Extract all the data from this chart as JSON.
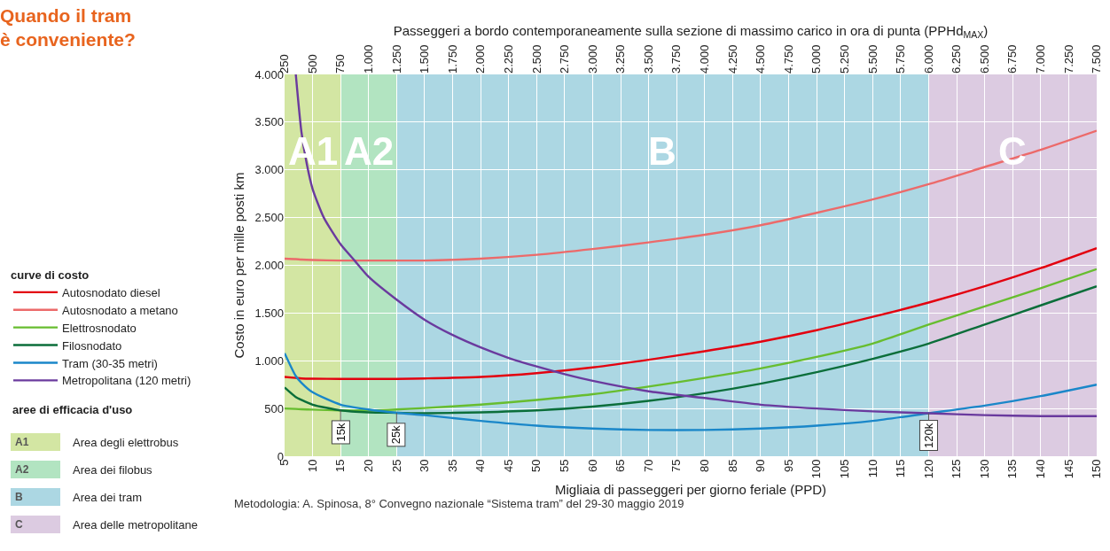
{
  "chart_data": {
    "type": "line",
    "title": "Quando il tram è conveniente?",
    "xlabel": "Migliaia di passeggeri per giorno feriale (PPD)",
    "ylabel": "Costo in euro per mille posti km",
    "x2label": "Passeggeri a bordo contemporaneamente sulla sezione di massimo carico in ora di punta (PPHd$_{MAX}$)",
    "legend_title": "curve di costo",
    "x": [
      5,
      7,
      8,
      10,
      15,
      20,
      25,
      30,
      40,
      50,
      60,
      70,
      80,
      90,
      100,
      110,
      120,
      130,
      140,
      150
    ],
    "series": [
      {
        "name": "Autosnodato diesel",
        "color": "#e3000f",
        "values": [
          830,
          820,
          815,
          812,
          810,
          810,
          810,
          815,
          830,
          870,
          930,
          1010,
          1100,
          1200,
          1320,
          1460,
          1610,
          1780,
          1970,
          2180
        ]
      },
      {
        "name": "Autosnodato a metano",
        "color": "#ec6a6a",
        "values": [
          2070,
          2065,
          2060,
          2055,
          2050,
          2050,
          2050,
          2050,
          2070,
          2110,
          2170,
          2240,
          2320,
          2420,
          2550,
          2690,
          2850,
          3030,
          3210,
          3410
        ]
      },
      {
        "name": "Elettrosnodato",
        "color": "#67bd2f",
        "values": [
          500,
          495,
          492,
          488,
          480,
          480,
          490,
          505,
          540,
          590,
          650,
          730,
          820,
          920,
          1040,
          1180,
          1380,
          1570,
          1760,
          1960
        ]
      },
      {
        "name": "Filosnodato",
        "color": "#0b6e3a",
        "values": [
          720,
          620,
          590,
          540,
          480,
          460,
          455,
          450,
          460,
          480,
          520,
          580,
          660,
          760,
          880,
          1020,
          1180,
          1380,
          1580,
          1780
        ]
      },
      {
        "name": "Tram (30-35 metri)",
        "color": "#1a87c9",
        "values": [
          1080,
          840,
          770,
          670,
          540,
          490,
          455,
          430,
          370,
          320,
          290,
          275,
          275,
          290,
          320,
          370,
          450,
          530,
          630,
          750
        ]
      },
      {
        "name": "Metropolitana (120 metri)",
        "color": "#6a3a9e",
        "x": [
          7,
          8,
          9,
          10,
          12,
          15,
          17.5,
          20,
          25,
          30,
          35,
          40,
          45,
          50,
          55,
          60,
          70,
          80,
          90,
          100,
          110,
          120,
          130,
          140,
          150
        ],
        "values": [
          4000,
          3400,
          3050,
          2800,
          2500,
          2220,
          2050,
          1880,
          1640,
          1430,
          1270,
          1140,
          1030,
          940,
          860,
          790,
          680,
          610,
          540,
          500,
          470,
          450,
          430,
          420,
          420
        ]
      }
    ],
    "xlim": [
      5,
      150
    ],
    "xticks": [
      5,
      10,
      15,
      20,
      25,
      30,
      35,
      40,
      45,
      50,
      55,
      60,
      65,
      70,
      75,
      80,
      85,
      90,
      95,
      100,
      105,
      110,
      115,
      120,
      125,
      130,
      135,
      140,
      145,
      150
    ],
    "x2lim": [
      250,
      7500
    ],
    "x2ticks": [
      250,
      500,
      750,
      {
        "value": 1000,
        "label": "1.000"
      },
      {
        "value": 1250,
        "label": "1.250"
      },
      {
        "value": 1500,
        "label": "1.500"
      },
      {
        "value": 1750,
        "label": "1.750"
      },
      {
        "value": 2000,
        "label": "2.000"
      },
      {
        "value": 2250,
        "label": "2.250"
      },
      {
        "value": 2500,
        "label": "2.500"
      },
      {
        "value": 2750,
        "label": "2.750"
      },
      {
        "value": 3000,
        "label": "3.000"
      },
      {
        "value": 3250,
        "label": "3.250"
      },
      {
        "value": 3500,
        "label": "3.500"
      },
      {
        "value": 3750,
        "label": "3.750"
      },
      {
        "value": 4000,
        "label": "4.000"
      },
      {
        "value": 4250,
        "label": "4.250"
      },
      {
        "value": 4500,
        "label": "4.500"
      },
      {
        "value": 4750,
        "label": "4.750"
      },
      {
        "value": 5000,
        "label": "5.000"
      },
      {
        "value": 5250,
        "label": "5.250"
      },
      {
        "value": 5500,
        "label": "5.500"
      },
      {
        "value": 5750,
        "label": "5.750"
      },
      {
        "value": 6000,
        "label": "6.000"
      },
      {
        "value": 6250,
        "label": "6.250"
      },
      {
        "value": 6500,
        "label": "6.500"
      },
      {
        "value": 6750,
        "label": "6.750"
      },
      {
        "value": 7000,
        "label": "7.000"
      },
      {
        "value": 7250,
        "label": "7.250"
      },
      {
        "value": 7500,
        "label": "7.500"
      }
    ],
    "ylim": [
      0,
      4000
    ],
    "yticks": [
      0,
      500,
      {
        "value": 1000,
        "label": "1.000"
      },
      {
        "value": 1500,
        "label": "1.500"
      },
      {
        "value": 2000,
        "label": "2.000"
      },
      {
        "value": 2500,
        "label": "2.500"
      },
      {
        "value": 3000,
        "label": "3.000"
      },
      {
        "value": 3500,
        "label": "3.500"
      },
      {
        "value": 4000,
        "label": "4.000"
      }
    ],
    "bands": [
      {
        "axis": "x",
        "from": 5,
        "to": 15,
        "label": "A1",
        "color": "#d3e6a3"
      },
      {
        "axis": "x",
        "from": 15,
        "to": 25,
        "label": "A2",
        "color": "#b2e4c1"
      },
      {
        "axis": "x",
        "from": 25,
        "to": 120,
        "label": "B",
        "color": "#acd7e3"
      },
      {
        "axis": "x",
        "from": 120,
        "to": 150,
        "label": "C",
        "color": "#dccbe1"
      }
    ],
    "annotations": [
      "aree di efficacia d'uso",
      "Area degli elettrobus",
      "Area dei filobus",
      "Area dei tram",
      "Area delle metropolitane",
      {
        "text": "15k",
        "x": 15,
        "y": 480
      },
      {
        "text": "25k",
        "x": 25,
        "y": 455
      },
      {
        "text": "120k",
        "x": 120,
        "y": 450
      },
      "Metodologia: A. Spinosa, 8° Convegno nazionale “Sistema tram” del 29-30 maggio 2019"
    ],
    "grid": true,
    "legend": "left",
    "line_style": "solid"
  }
}
